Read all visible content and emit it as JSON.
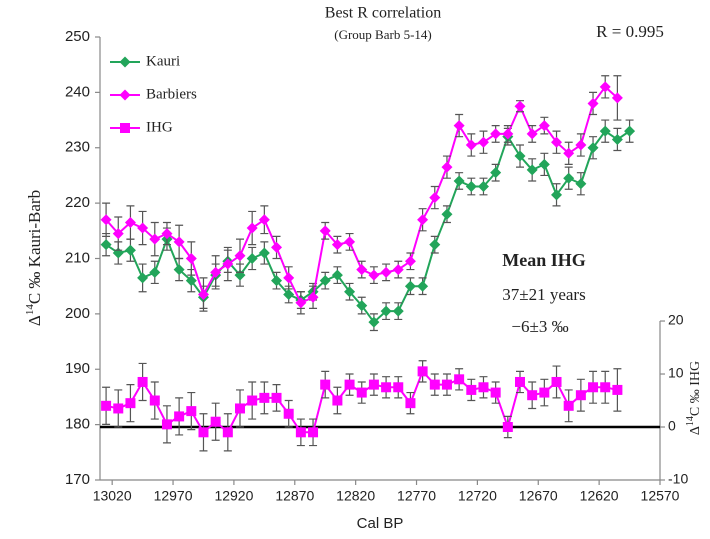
{
  "chart_data": {
    "type": "line",
    "title": "Best R correlation",
    "subtitle": "(Group Barb 5-14)",
    "annotations": [
      "R = 0.995",
      "Mean IHG",
      "37±21 years",
      "−6±3 ‰"
    ],
    "xlabel": "Cal BP",
    "ylabel": {
      "prefix": "Δ",
      "sup": "14",
      "suffix": "C ‰ Kauri-Barb"
    },
    "y2label": {
      "prefix": "Δ",
      "sup": "14",
      "suffix": "C ‰ IHG"
    },
    "x": [
      13025,
      13015,
      13005,
      12995,
      12985,
      12975,
      12965,
      12955,
      12945,
      12935,
      12925,
      12915,
      12905,
      12895,
      12885,
      12875,
      12865,
      12855,
      12845,
      12835,
      12825,
      12815,
      12805,
      12795,
      12785,
      12775,
      12765,
      12755,
      12745,
      12735,
      12725,
      12715,
      12705,
      12695,
      12685,
      12675,
      12665,
      12655,
      12645,
      12635,
      12625,
      12615,
      12605,
      12595
    ],
    "xlim": [
      13030,
      12570
    ],
    "xticks": [
      13020,
      12970,
      12920,
      12870,
      12820,
      12770,
      12720,
      12670,
      12620,
      12570
    ],
    "ylim": [
      170,
      250
    ],
    "yticks": [
      170,
      180,
      190,
      200,
      210,
      220,
      230,
      240,
      250
    ],
    "y2lim": [
      -10,
      73.6
    ],
    "y2ticks": [
      -10,
      0,
      10,
      20
    ],
    "zero_line": true,
    "series": [
      {
        "name": "Kauri",
        "color": "#22a55a",
        "marker": "diamond",
        "values": [
          212.5,
          211,
          211.5,
          206.5,
          207.5,
          213.5,
          208,
          206,
          203,
          207,
          209.5,
          207,
          210,
          211,
          206,
          203.5,
          202.5,
          204,
          206,
          207,
          204,
          201.5,
          198.5,
          200.5,
          200.5,
          205,
          205,
          212.5,
          218,
          224,
          223,
          223,
          225.5,
          232,
          228.5,
          226,
          227,
          221.5,
          224.5,
          223.5,
          230,
          233,
          231.5,
          233
        ],
        "errors": [
          2,
          2,
          2,
          2.5,
          2,
          2,
          2,
          2,
          2,
          2,
          2,
          2,
          2,
          2,
          1.5,
          1.5,
          1.5,
          1.5,
          1.5,
          1.5,
          1.5,
          1.5,
          1.5,
          1.5,
          1.5,
          1.5,
          1.5,
          1.5,
          1.5,
          1.5,
          1.5,
          1.5,
          1.5,
          1.5,
          2,
          2,
          2,
          2,
          2,
          2,
          2,
          2,
          2,
          2
        ]
      },
      {
        "name": "Barbiers",
        "color": "#ff00ff",
        "marker": "diamond",
        "values": [
          217,
          214.5,
          216.5,
          215.5,
          213.5,
          214.5,
          213,
          210,
          203.5,
          207.5,
          209,
          210.5,
          215.5,
          217,
          212,
          206.5,
          202,
          203,
          215,
          212.5,
          213,
          208,
          207,
          207.5,
          208,
          209.5,
          217,
          221,
          226.5,
          234,
          230.5,
          231,
          232.5,
          232.5,
          237.5,
          232.5,
          234,
          231,
          229,
          230.5,
          238,
          241,
          239,
          null
        ],
        "errors": [
          3,
          3,
          3,
          3,
          3,
          2,
          3,
          3,
          3,
          3,
          3,
          3,
          3,
          2.5,
          2,
          2,
          2,
          2,
          1.5,
          1.5,
          1.5,
          1.5,
          1.5,
          1.5,
          1.5,
          1.5,
          2,
          2,
          2,
          2,
          2,
          2,
          1.5,
          1.5,
          1,
          1.5,
          1.5,
          2,
          2,
          2,
          2,
          2,
          4,
          null
        ]
      },
      {
        "name": "IHG",
        "color": "#ff00ff",
        "marker": "square",
        "axis": "y2",
        "values": [
          4,
          3.5,
          4.5,
          8.5,
          5,
          0.5,
          2,
          3,
          -1,
          1,
          -1,
          3.5,
          5,
          5.5,
          5.5,
          2.5,
          -1,
          -1,
          8,
          5,
          8,
          6.5,
          8,
          7.5,
          7.5,
          4.5,
          10.5,
          8,
          8,
          9,
          7,
          7.5,
          6.5,
          0,
          8.5,
          6,
          6.5,
          8.5,
          4,
          6,
          7.5,
          7.5,
          7,
          null
        ],
        "errors": [
          3.5,
          3.5,
          3.5,
          3.5,
          3.5,
          3.5,
          3.5,
          3.5,
          3.5,
          3.5,
          3.5,
          3.5,
          3.5,
          3,
          2.5,
          2.5,
          2.5,
          2.5,
          2.5,
          2.5,
          2,
          2,
          2,
          2,
          2,
          2,
          2,
          2,
          2,
          2,
          2,
          2,
          2,
          2,
          2,
          2.5,
          2.5,
          3,
          3,
          3,
          3,
          3,
          4,
          null
        ]
      }
    ],
    "legend_position": "upper left"
  }
}
